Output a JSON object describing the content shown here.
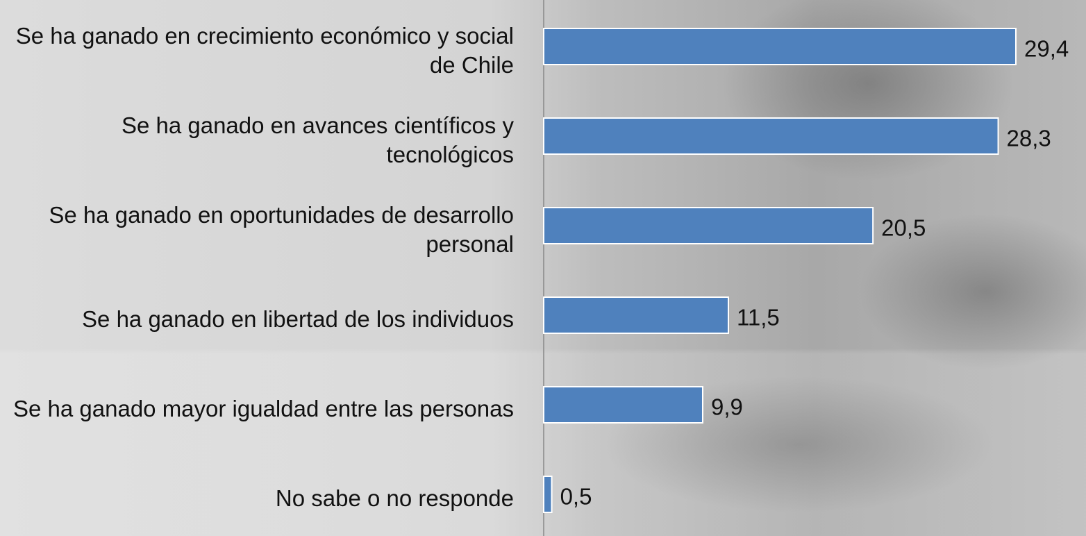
{
  "chart_data": {
    "type": "barh",
    "categories": [
      "Se ha ganado en crecimiento económico y social de Chile",
      "Se ha ganado en avances científicos y tecnológicos",
      "Se ha ganado en oportunidades de desarrollo personal",
      "Se ha ganado en libertad de los individuos",
      "Se ha ganado mayor igualdad entre las personas",
      "No sabe o no responde"
    ],
    "values": [
      29.4,
      28.3,
      20.5,
      11.5,
      9.9,
      0.5
    ],
    "value_labels": [
      "29,4",
      "28,3",
      "20,5",
      "11,5",
      "9,9",
      "0,5"
    ],
    "color": "#4f81bd",
    "xlim": [
      0,
      31
    ]
  }
}
